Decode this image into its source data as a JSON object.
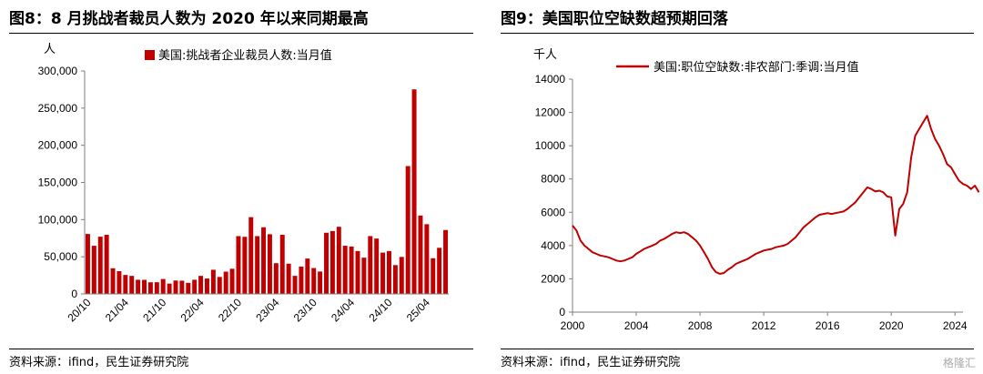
{
  "colors": {
    "series": "#c00000",
    "axis": "#7f7f7f",
    "text": "#000000"
  },
  "watermark": "格隆汇",
  "chart_data": [
    {
      "type": "bar",
      "title": "图8：8 月挑战者裁员人数为 2020 年以来同期最高",
      "source": "资料来源：ifind，民生证券研究院",
      "ylabel": "人",
      "ylim": [
        0,
        300000
      ],
      "yticks": [
        "0",
        "50,000",
        "100,000",
        "150,000",
        "200,000",
        "250,000",
        "300,000"
      ],
      "x_tick_labels": [
        "20/10",
        "21/04",
        "21/10",
        "22/04",
        "22/10",
        "23/04",
        "23/10",
        "24/04",
        "24/10",
        "25/04"
      ],
      "x_tick_index": [
        0,
        6,
        12,
        18,
        24,
        30,
        36,
        42,
        48,
        54
      ],
      "legend": "美国:挑战者企业裁员人数:当月值",
      "legend_position": "top",
      "grid": false,
      "values": [
        80666,
        64797,
        77030,
        79552,
        34531,
        30603,
        25528,
        24286,
        19063,
        18942,
        15648,
        15723,
        20046,
        13913,
        18016,
        17778,
        14875,
        19064,
        24286,
        20712,
        32517,
        22854,
        29989,
        33843,
        77770,
        76835,
        103311,
        77770,
        89703,
        80334,
        41356,
        79552,
        40709,
        24313,
        36836,
        47600,
        34817,
        30135,
        82307,
        84638,
        90309,
        64789,
        63816,
        57727,
        48786,
        77834,
        74536,
        55597,
        57727,
        38792,
        49795,
        172017,
        275240,
        105441,
        93816,
        47999,
        62075,
        85979
      ]
    },
    {
      "type": "line",
      "title": "图9：美国职位空缺数超预期回落",
      "source": "资料来源：ifind，民生证券研究院",
      "ylabel": "千人",
      "ylim": [
        0,
        14000
      ],
      "yticks": [
        "0",
        "2000",
        "4000",
        "6000",
        "8000",
        "10000",
        "12000",
        "14000"
      ],
      "xlim": [
        2000,
        2024.5
      ],
      "xticks": [
        "2000",
        "2004",
        "2008",
        "2012",
        "2016",
        "2020",
        "2024"
      ],
      "legend": "美国:职位空缺数:非农部门:季调:当月值",
      "legend_position": "top",
      "grid": false,
      "points": [
        [
          2000.0,
          5200
        ],
        [
          2000.25,
          4900
        ],
        [
          2000.5,
          4300
        ],
        [
          2000.75,
          4000
        ],
        [
          2001.0,
          3800
        ],
        [
          2001.25,
          3600
        ],
        [
          2001.5,
          3500
        ],
        [
          2001.75,
          3400
        ],
        [
          2002.0,
          3350
        ],
        [
          2002.25,
          3300
        ],
        [
          2002.5,
          3200
        ],
        [
          2002.75,
          3100
        ],
        [
          2003.0,
          3050
        ],
        [
          2003.25,
          3100
        ],
        [
          2003.5,
          3200
        ],
        [
          2003.75,
          3300
        ],
        [
          2004.0,
          3500
        ],
        [
          2004.25,
          3650
        ],
        [
          2004.5,
          3800
        ],
        [
          2004.75,
          3900
        ],
        [
          2005.0,
          4000
        ],
        [
          2005.25,
          4100
        ],
        [
          2005.5,
          4300
        ],
        [
          2005.75,
          4400
        ],
        [
          2006.0,
          4550
        ],
        [
          2006.25,
          4700
        ],
        [
          2006.5,
          4800
        ],
        [
          2006.75,
          4750
        ],
        [
          2007.0,
          4800
        ],
        [
          2007.25,
          4700
        ],
        [
          2007.5,
          4500
        ],
        [
          2007.75,
          4300
        ],
        [
          2008.0,
          4000
        ],
        [
          2008.25,
          3600
        ],
        [
          2008.5,
          3200
        ],
        [
          2008.75,
          2700
        ],
        [
          2009.0,
          2400
        ],
        [
          2009.25,
          2300
        ],
        [
          2009.5,
          2350
        ],
        [
          2009.75,
          2550
        ],
        [
          2010.0,
          2700
        ],
        [
          2010.25,
          2900
        ],
        [
          2010.5,
          3000
        ],
        [
          2010.75,
          3100
        ],
        [
          2011.0,
          3200
        ],
        [
          2011.25,
          3350
        ],
        [
          2011.5,
          3500
        ],
        [
          2011.75,
          3600
        ],
        [
          2012.0,
          3700
        ],
        [
          2012.25,
          3750
        ],
        [
          2012.5,
          3800
        ],
        [
          2012.75,
          3900
        ],
        [
          2013.0,
          3950
        ],
        [
          2013.25,
          4000
        ],
        [
          2013.5,
          4100
        ],
        [
          2013.75,
          4300
        ],
        [
          2014.0,
          4500
        ],
        [
          2014.25,
          4800
        ],
        [
          2014.5,
          5100
        ],
        [
          2014.75,
          5300
        ],
        [
          2015.0,
          5500
        ],
        [
          2015.25,
          5700
        ],
        [
          2015.5,
          5850
        ],
        [
          2015.75,
          5900
        ],
        [
          2016.0,
          5950
        ],
        [
          2016.25,
          5900
        ],
        [
          2016.5,
          5950
        ],
        [
          2016.75,
          6000
        ],
        [
          2017.0,
          6050
        ],
        [
          2017.25,
          6200
        ],
        [
          2017.5,
          6400
        ],
        [
          2017.75,
          6600
        ],
        [
          2018.0,
          6900
        ],
        [
          2018.25,
          7200
        ],
        [
          2018.5,
          7500
        ],
        [
          2018.75,
          7400
        ],
        [
          2019.0,
          7250
        ],
        [
          2019.25,
          7300
        ],
        [
          2019.5,
          7200
        ],
        [
          2019.75,
          6950
        ],
        [
          2020.0,
          6900
        ],
        [
          2020.25,
          4600
        ],
        [
          2020.5,
          6200
        ],
        [
          2020.75,
          6500
        ],
        [
          2021.0,
          7200
        ],
        [
          2021.25,
          9300
        ],
        [
          2021.5,
          10600
        ],
        [
          2021.75,
          11000
        ],
        [
          2022.0,
          11400
        ],
        [
          2022.25,
          11800
        ],
        [
          2022.5,
          11000
        ],
        [
          2022.75,
          10400
        ],
        [
          2023.0,
          10000
        ],
        [
          2023.25,
          9500
        ],
        [
          2023.5,
          8900
        ],
        [
          2023.75,
          8700
        ],
        [
          2024.0,
          8300
        ],
        [
          2024.25,
          7900
        ],
        [
          2024.5,
          7700
        ],
        [
          2024.75,
          7600
        ],
        [
          2025.0,
          7400
        ],
        [
          2025.25,
          7600
        ],
        [
          2025.5,
          7200
        ]
      ]
    }
  ]
}
